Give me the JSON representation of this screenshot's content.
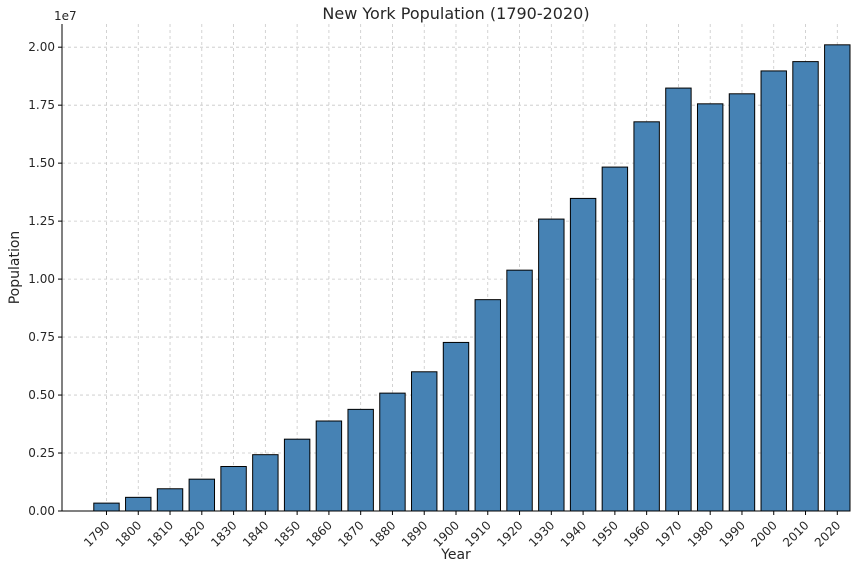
{
  "chart_data": {
    "type": "bar",
    "title": "New York Population (1790-2020)",
    "xlabel": "Year",
    "ylabel": "Population",
    "y_scale_note": "1e7",
    "categories": [
      "1790",
      "1800",
      "1810",
      "1820",
      "1830",
      "1840",
      "1850",
      "1860",
      "1870",
      "1880",
      "1890",
      "1900",
      "1910",
      "1920",
      "1930",
      "1940",
      "1950",
      "1960",
      "1970",
      "1980",
      "1990",
      "2000",
      "2010",
      "2020"
    ],
    "values": [
      340120,
      589051,
      959049,
      1372812,
      1918608,
      2428921,
      3097394,
      3880735,
      4382759,
      5082871,
      6003174,
      7268894,
      9113614,
      10385227,
      12588066,
      13479142,
      14830192,
      16782304,
      18236967,
      17558072,
      17990455,
      18976457,
      19378102,
      20102000
    ],
    "ylim": [
      0,
      21000000
    ],
    "yticks": [
      0,
      2500000,
      5000000,
      7500000,
      10000000,
      12500000,
      15000000,
      17500000,
      20000000
    ],
    "ytick_labels": [
      "0.00",
      "0.25",
      "0.50",
      "0.75",
      "1.00",
      "1.25",
      "1.50",
      "1.75",
      "2.00"
    ],
    "grid": true,
    "bar_color": "#4682b4",
    "edge_color": "#000000"
  }
}
